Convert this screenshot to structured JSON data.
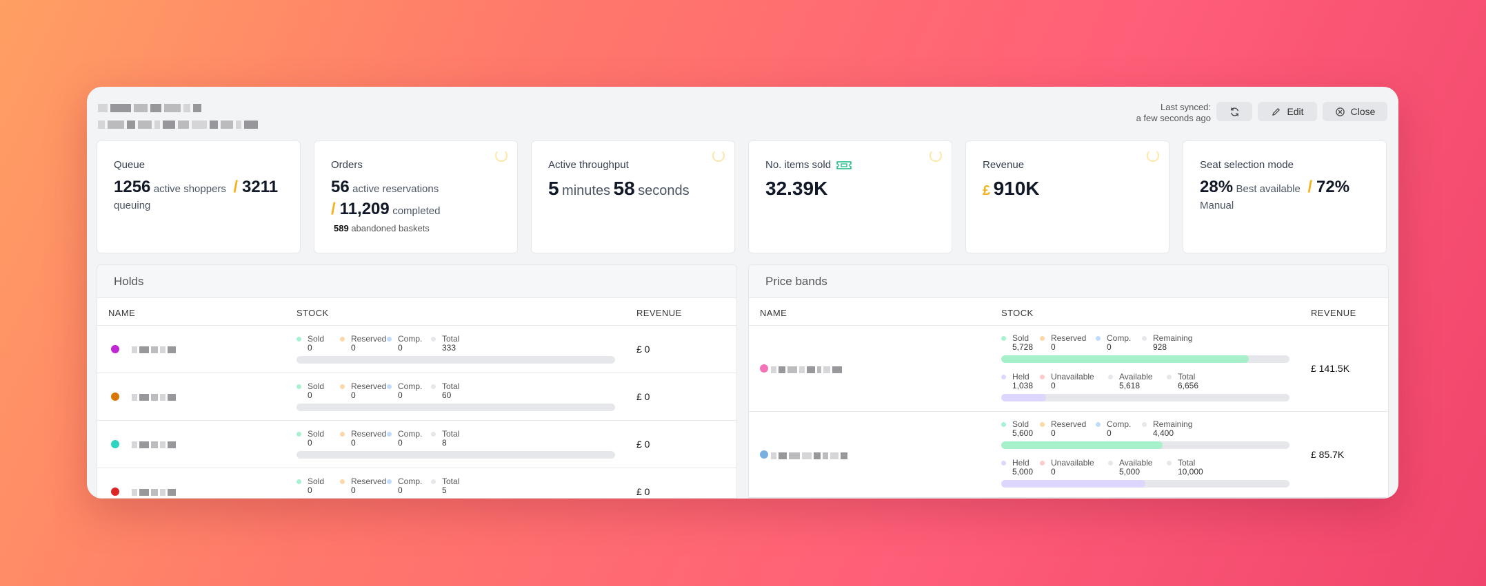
{
  "header": {
    "sync_label": "Last synced:",
    "sync_time": "a few seconds ago",
    "edit_label": "Edit",
    "close_label": "Close"
  },
  "cards": {
    "queue": {
      "label": "Queue",
      "active": "1256",
      "active_label": "active shoppers",
      "queuing": "3211",
      "queuing_label": "queuing"
    },
    "orders": {
      "label": "Orders",
      "active": "56",
      "active_label": "active reservations",
      "completed": "11,209",
      "completed_label": "completed",
      "abandoned": "589",
      "abandoned_label": "abandoned baskets"
    },
    "throughput": {
      "label": "Active throughput",
      "minutes": "5",
      "minutes_label": "minutes",
      "seconds": "58",
      "seconds_label": "seconds"
    },
    "items": {
      "label": "No. items sold",
      "value": "32.39K",
      "icon": "ticket-icon"
    },
    "revenue": {
      "label": "Revenue",
      "currency": "£",
      "value": "910K"
    },
    "seat": {
      "label": "Seat selection mode",
      "best": "28%",
      "best_label": "Best available",
      "manual": "72%",
      "manual_label": "Manual"
    }
  },
  "holds": {
    "title": "Holds",
    "columns": [
      "NAME",
      "STOCK",
      "REVENUE"
    ],
    "stat_labels": [
      "Sold",
      "Reserved",
      "Comp.",
      "Total"
    ],
    "rows": [
      {
        "color": "#c026d3",
        "sold": "0",
        "reserved": "0",
        "comp": "0",
        "total": "333",
        "revenue": "£ 0"
      },
      {
        "color": "#d97706",
        "sold": "0",
        "reserved": "0",
        "comp": "0",
        "total": "60",
        "revenue": "£ 0"
      },
      {
        "color": "#2dd4bf",
        "sold": "0",
        "reserved": "0",
        "comp": "0",
        "total": "8",
        "revenue": "£ 0"
      },
      {
        "color": "#dc2626",
        "sold": "0",
        "reserved": "0",
        "comp": "0",
        "total": "5",
        "revenue": "£ 0"
      }
    ]
  },
  "price_bands": {
    "title": "Price bands",
    "columns": [
      "NAME",
      "STOCK",
      "REVENUE"
    ],
    "top_labels": [
      "Sold",
      "Reserved",
      "Comp.",
      "Remaining"
    ],
    "bottom_labels": [
      "Held",
      "Unavailable",
      "Available",
      "Total"
    ],
    "rows": [
      {
        "color": "#f472b6",
        "sold": "5,728",
        "reserved": "0",
        "comp": "0",
        "remaining": "928",
        "held": "1,038",
        "unavailable": "0",
        "available": "5,618",
        "total": "6,656",
        "sold_fraction": 0.86,
        "held_fraction": 0.156,
        "revenue": "£ 141.5K"
      },
      {
        "color": "#7ab0e0",
        "sold": "5,600",
        "reserved": "0",
        "comp": "0",
        "remaining": "4,400",
        "held": "5,000",
        "unavailable": "0",
        "available": "5,000",
        "total": "10,000",
        "sold_fraction": 0.56,
        "held_fraction": 0.5,
        "revenue": "£ 85.7K"
      }
    ]
  },
  "colors": {
    "sold": "#a7f3d0",
    "reserved": "#fcd7a8",
    "comp": "#bfdbfe",
    "total": "#e5e7eb",
    "held": "#ddd6fe",
    "unavailable": "#fecaca",
    "available": "#e5e7eb",
    "accent": "#f6b21e"
  }
}
